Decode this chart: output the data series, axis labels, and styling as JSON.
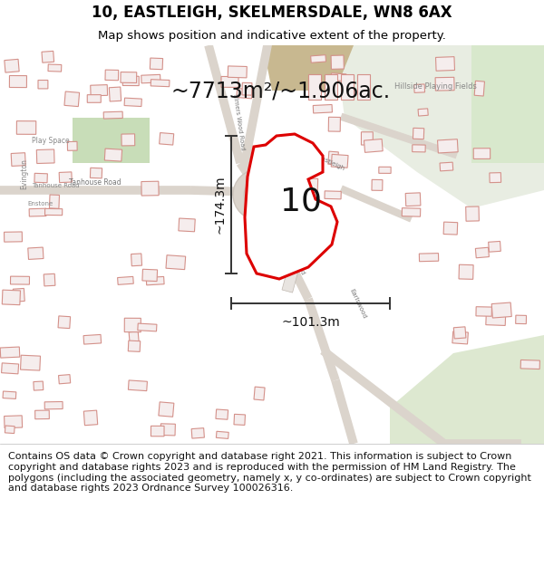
{
  "title": "10, EASTLEIGH, SKELMERSDALE, WN8 6AX",
  "subtitle": "Map shows position and indicative extent of the property.",
  "footer": "Contains OS data © Crown copyright and database right 2021. This information is subject to Crown copyright and database rights 2023 and is reproduced with the permission of HM Land Registry. The polygons (including the associated geometry, namely x, y co-ordinates) are subject to Crown copyright and database rights 2023 Ordnance Survey 100026316.",
  "area_label": "~7713m²/~1.906ac.",
  "property_number": "10",
  "dim_vertical": "~174.3m",
  "dim_horizontal": "~101.3m",
  "map_bg": "#f2eeea",
  "road_color": "#e8e2da",
  "building_edge_color": "#d4918a",
  "building_face_color": "#f5eded",
  "green_color": "#dce8d4",
  "green_dark": "#c8ddb8",
  "plot_outline_color": "#dd0000",
  "plot_fill_color": "#ffffff",
  "dim_line_color": "#333333",
  "title_fontsize": 12,
  "subtitle_fontsize": 9.5,
  "footer_fontsize": 8.0,
  "area_label_fontsize": 17,
  "number_fontsize": 26,
  "label_color": "#888888",
  "road_label_color": "#777777"
}
